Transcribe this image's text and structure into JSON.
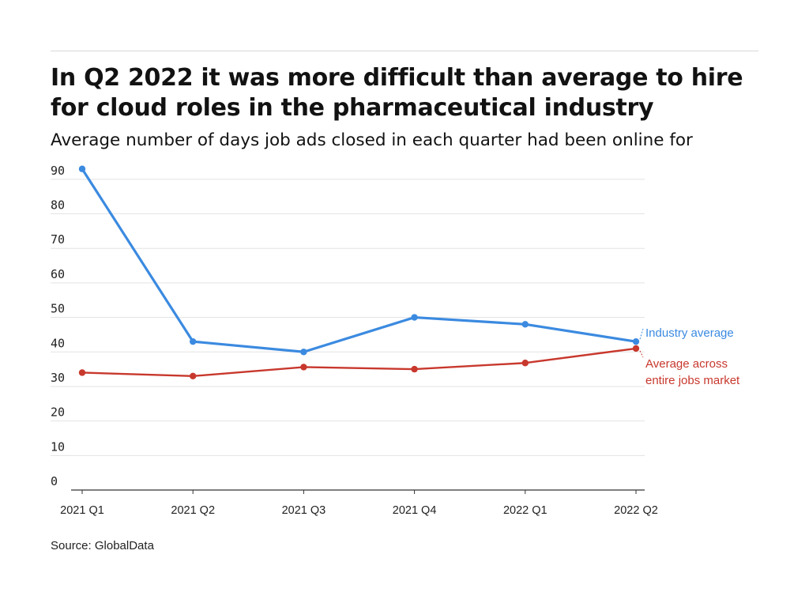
{
  "header": {
    "title": "In Q2 2022 it was more difficult than average to hire for cloud roles in the pharmaceutical industry",
    "subtitle": "Average number of days job ads closed in each quarter had been online for"
  },
  "footer": {
    "source": "Source: GlobalData"
  },
  "colors": {
    "industry": "#3b8ae0",
    "market": "#c8382d",
    "grid": "#e3e3e3",
    "axis": "#333333"
  },
  "chart_data": {
    "type": "line",
    "title": "In Q2 2022 it was more difficult than average to hire for cloud roles in the pharmaceutical industry",
    "subtitle": "Average number of days job ads closed in each quarter had been online for",
    "categories": [
      "2021 Q1",
      "2021 Q2",
      "2021 Q3",
      "2021 Q4",
      "2022 Q1",
      "2022 Q2"
    ],
    "ylim": [
      0,
      95
    ],
    "yticks": [
      0,
      10,
      20,
      30,
      40,
      50,
      60,
      70,
      80,
      90
    ],
    "grid": true,
    "legend": "direct labels at right end of lines",
    "series": [
      {
        "name": "Industry average",
        "values": [
          93,
          43,
          40,
          50,
          48,
          43
        ]
      },
      {
        "name": "Average across entire jobs market",
        "label_lines": [
          "Average across",
          "entire jobs market"
        ],
        "values": [
          34,
          33,
          35.6,
          35,
          36.8,
          41
        ]
      }
    ]
  }
}
